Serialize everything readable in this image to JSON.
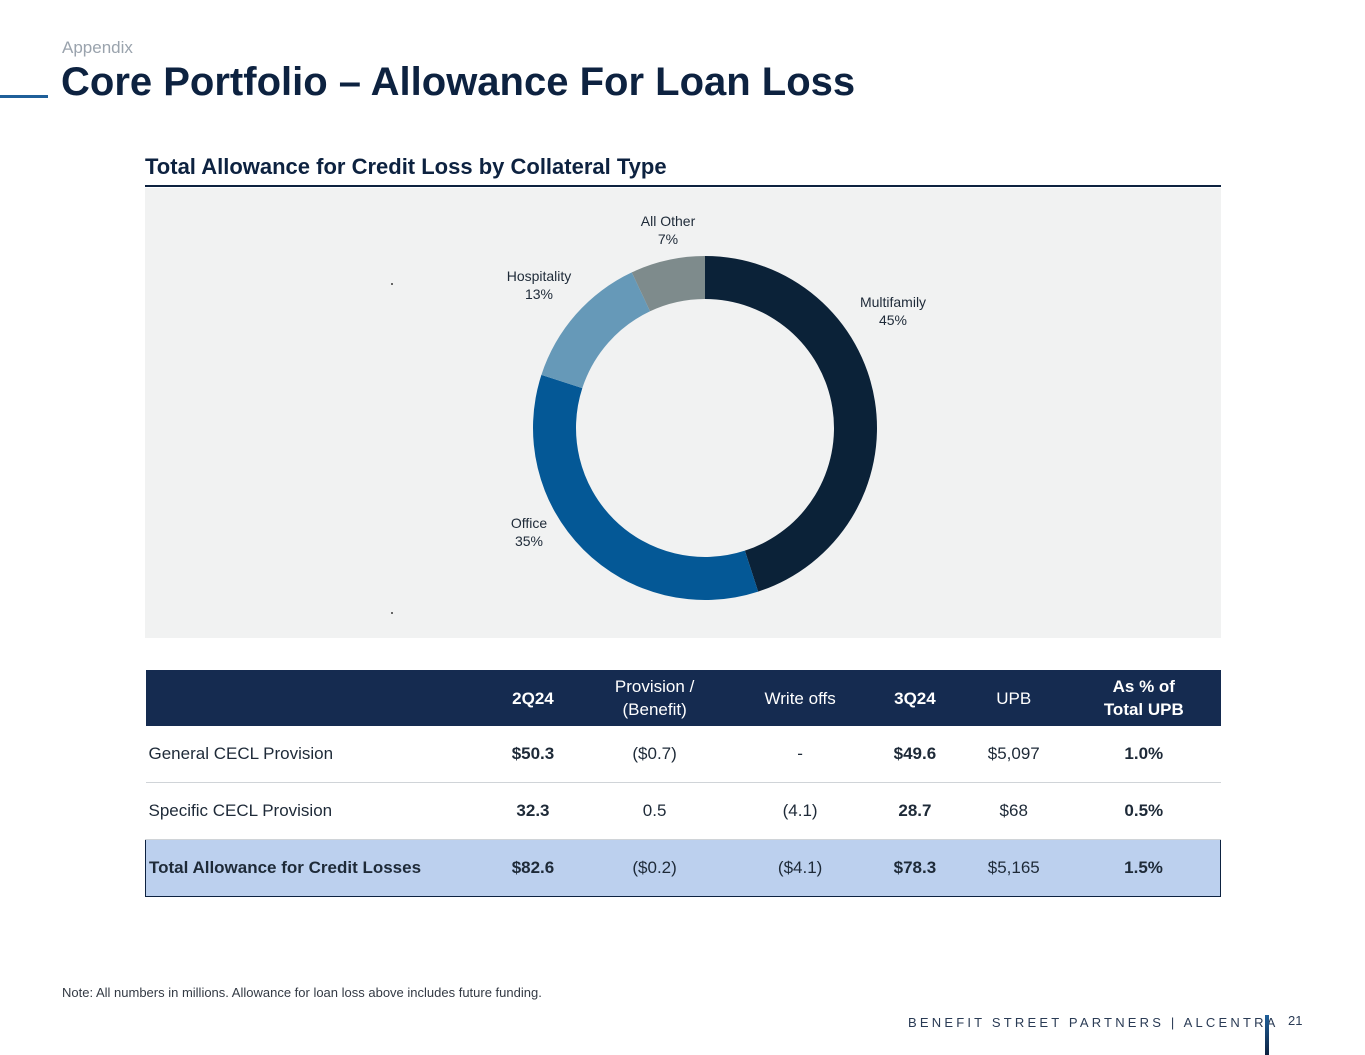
{
  "header": {
    "eyebrow": "Appendix",
    "title": "Core Portfolio – Allowance For Loan Loss"
  },
  "chart_data": {
    "type": "pie",
    "title": "Total Allowance for Credit Loss by Collateral Type",
    "donut": true,
    "slices": [
      {
        "label": "Multifamily",
        "value": 45,
        "pct_label": "45%",
        "color": "#0b2238"
      },
      {
        "label": "Office",
        "value": 35,
        "pct_label": "35%",
        "color": "#045896"
      },
      {
        "label": "Hospitality",
        "value": 13,
        "pct_label": "13%",
        "color": "#6699b8"
      },
      {
        "label": "All Other",
        "value": 7,
        "pct_label": "7%",
        "color": "#7e8b8c"
      }
    ]
  },
  "table": {
    "headers": [
      "",
      "2Q24",
      "Provision /\n(Benefit)",
      "Write offs",
      "3Q24",
      "UPB",
      "As % of\nTotal UPB"
    ],
    "rows": [
      [
        "General CECL Provision",
        "$50.3",
        "($0.7)",
        "-",
        "$49.6",
        "$5,097",
        "1.0%"
      ],
      [
        "Specific CECL Provision",
        "32.3",
        "0.5",
        "(4.1)",
        "28.7",
        "$68",
        "0.5%"
      ],
      [
        "Total Allowance for Credit Losses",
        "$82.6",
        "($0.2)",
        "($4.1)",
        "$78.3",
        "$5,165",
        "1.5%"
      ]
    ]
  },
  "footer": {
    "note": "Note: All numbers in millions. Allowance for loan loss above includes future funding.",
    "brand": "BENEFIT STREET PARTNERS | ALCENTRA",
    "page_number": "21"
  },
  "colors": {
    "navy": "#0d2240",
    "table_header": "#152b50",
    "total_row": "#bcd0ee",
    "panel": "#f1f2f2"
  }
}
